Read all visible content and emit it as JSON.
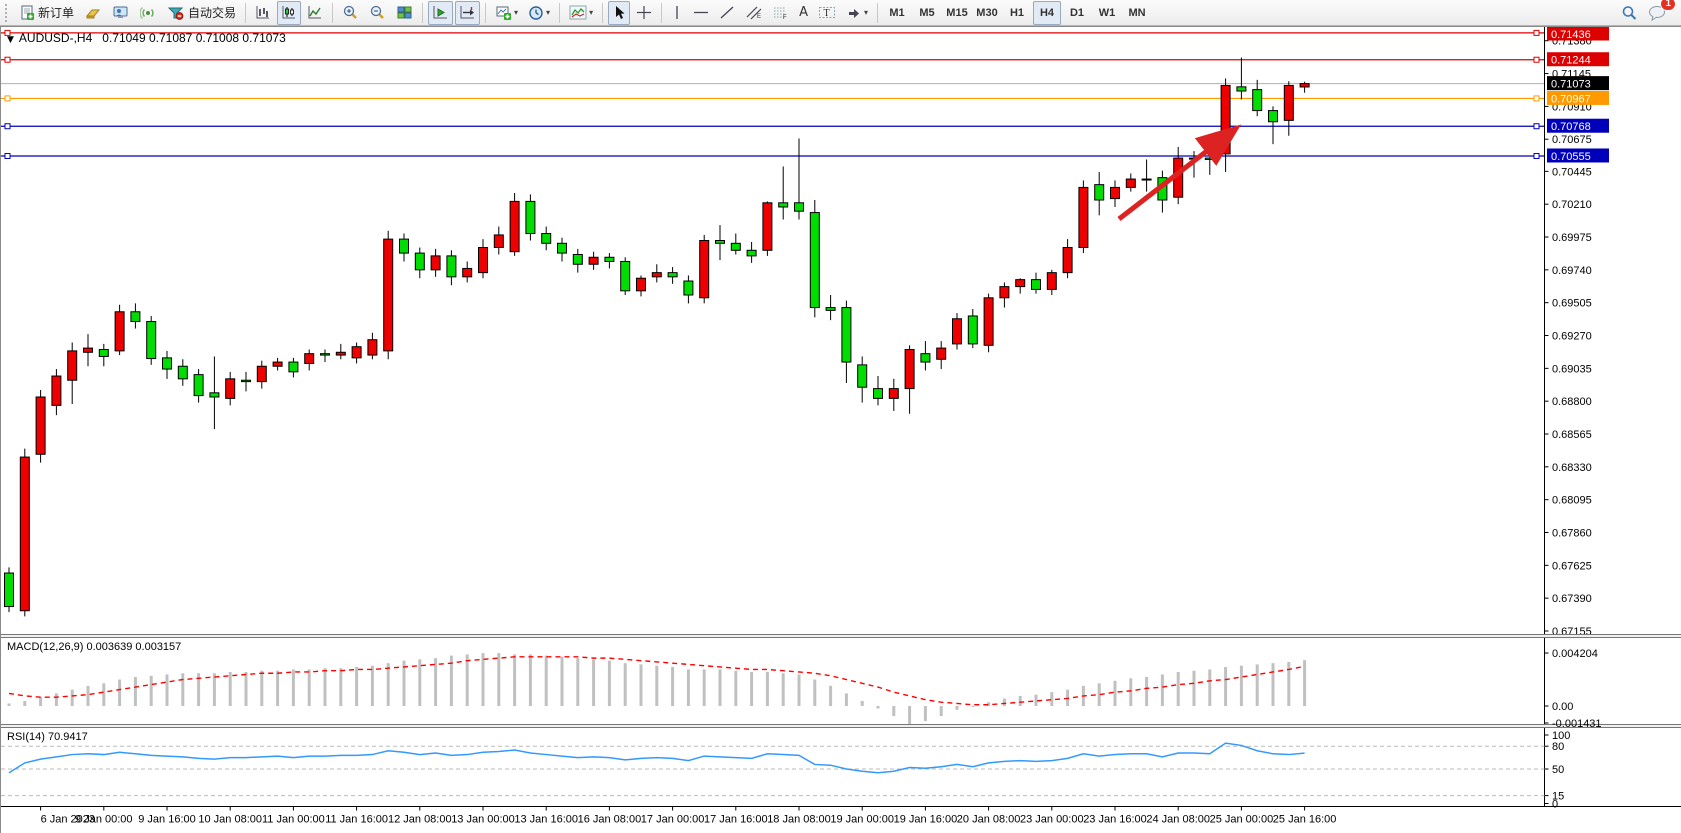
{
  "toolbar": {
    "new_order_label": "新订单",
    "autotrade_label": "自动交易",
    "timeframes": [
      "M1",
      "M5",
      "M15",
      "M30",
      "H1",
      "H4",
      "D1",
      "W1",
      "MN"
    ],
    "active_timeframe": "H4",
    "notification_count": "1",
    "icons": [
      "new-order-icon",
      "mql-gold-icon",
      "expert-advisor-icon",
      "signals-icon",
      "autotrade-icon",
      "bar-chart-icon",
      "candlestick-chart-icon",
      "line-chart-icon",
      "zoom-in-icon",
      "zoom-out-icon",
      "tile-windows-icon",
      "auto-scroll-icon",
      "chart-shift-icon",
      "new-chart-icon",
      "profiles-icon",
      "indicators-icon",
      "cursor-icon",
      "crosshair-icon",
      "vertical-line-icon",
      "horizontal-line-icon",
      "trendline-icon",
      "channel-icon",
      "fibonacci-icon",
      "text-icon",
      "text-label-icon",
      "shapes-icon",
      "search-icon",
      "chat-icon"
    ]
  },
  "chart": {
    "dropdown_glyph": "▼",
    "symbol_title": "AUDUSD-,H4",
    "ohlc_text": "0.71049 0.71087 0.71008 0.71073"
  },
  "chart_data": {
    "type": "candlestick",
    "symbol": "AUDUSD-",
    "timeframe": "H4",
    "title": "AUDUSD-,H4 0.71049 0.71087 0.71008 0.71073",
    "current_bar_ohlc": [
      0.71049,
      0.71087,
      0.71008,
      0.71073
    ],
    "up_color": "#ee0000",
    "down_color": "#00dd00",
    "bars": [
      [
        0.6757,
        0.6761,
        0.6729,
        0.6733
      ],
      [
        0.673,
        0.6846,
        0.6726,
        0.684
      ],
      [
        0.6842,
        0.6888,
        0.6836,
        0.6883
      ],
      [
        0.6877,
        0.6903,
        0.687,
        0.6898
      ],
      [
        0.6895,
        0.6922,
        0.6878,
        0.6916
      ],
      [
        0.6915,
        0.6928,
        0.6905,
        0.6918
      ],
      [
        0.6917,
        0.6921,
        0.6905,
        0.6912
      ],
      [
        0.6916,
        0.6949,
        0.6913,
        0.6944
      ],
      [
        0.6944,
        0.695,
        0.6932,
        0.6937
      ],
      [
        0.6937,
        0.6941,
        0.6906,
        0.69105
      ],
      [
        0.6911,
        0.6916,
        0.6896,
        0.6903
      ],
      [
        0.6905,
        0.691,
        0.6891,
        0.6896
      ],
      [
        0.6899,
        0.6903,
        0.6879,
        0.6884
      ],
      [
        0.6886,
        0.6912,
        0.686,
        0.6883
      ],
      [
        0.6882,
        0.6901,
        0.6877,
        0.6896
      ],
      [
        0.6895,
        0.6901,
        0.6887,
        0.6894
      ],
      [
        0.6894,
        0.6909,
        0.6889,
        0.6905
      ],
      [
        0.6905,
        0.6911,
        0.6902,
        0.6908
      ],
      [
        0.6908,
        0.6911,
        0.6897,
        0.6901
      ],
      [
        0.6907,
        0.6917,
        0.6902,
        0.6914
      ],
      [
        0.6914,
        0.6917,
        0.6908,
        0.6913
      ],
      [
        0.6913,
        0.6921,
        0.691,
        0.6915
      ],
      [
        0.6911,
        0.6922,
        0.6907,
        0.6919
      ],
      [
        0.6913,
        0.6929,
        0.691,
        0.6924
      ],
      [
        0.6916,
        0.7002,
        0.691,
        0.6996
      ],
      [
        0.6996,
        0.7,
        0.698,
        0.6986
      ],
      [
        0.6986,
        0.699,
        0.6968,
        0.6974
      ],
      [
        0.6974,
        0.6989,
        0.6969,
        0.6984
      ],
      [
        0.6984,
        0.6988,
        0.6963,
        0.6969
      ],
      [
        0.6969,
        0.698,
        0.6965,
        0.6975
      ],
      [
        0.6972,
        0.6996,
        0.6968,
        0.699
      ],
      [
        0.699,
        0.7005,
        0.6985,
        0.6999
      ],
      [
        0.6987,
        0.7029,
        0.6984,
        0.7023
      ],
      [
        0.7023,
        0.7028,
        0.6995,
        0.7
      ],
      [
        0.7,
        0.7005,
        0.6988,
        0.6993
      ],
      [
        0.6993,
        0.6997,
        0.698,
        0.6986
      ],
      [
        0.6985,
        0.6989,
        0.6972,
        0.6978
      ],
      [
        0.6978,
        0.6987,
        0.6974,
        0.6983
      ],
      [
        0.6983,
        0.6986,
        0.6975,
        0.698
      ],
      [
        0.698,
        0.6983,
        0.6956,
        0.6959
      ],
      [
        0.6959,
        0.697,
        0.6955,
        0.6968
      ],
      [
        0.6969,
        0.6978,
        0.6965,
        0.6972
      ],
      [
        0.6972,
        0.6976,
        0.6964,
        0.6969
      ],
      [
        0.6966,
        0.697,
        0.695,
        0.6956
      ],
      [
        0.6954,
        0.6999,
        0.695,
        0.6995
      ],
      [
        0.6995,
        0.7006,
        0.6981,
        0.6993
      ],
      [
        0.6993,
        0.7,
        0.6985,
        0.6988
      ],
      [
        0.6988,
        0.6994,
        0.6979,
        0.6984
      ],
      [
        0.6988,
        0.7023,
        0.6984,
        0.7022
      ],
      [
        0.7022,
        0.7048,
        0.701,
        0.7019
      ],
      [
        0.7022,
        0.7068,
        0.701,
        0.7016
      ],
      [
        0.7015,
        0.7024,
        0.694,
        0.6947
      ],
      [
        0.6947,
        0.6956,
        0.6938,
        0.6945
      ],
      [
        0.6947,
        0.6952,
        0.6893,
        0.6908
      ],
      [
        0.6906,
        0.6912,
        0.6879,
        0.689
      ],
      [
        0.6889,
        0.6898,
        0.6877,
        0.6882
      ],
      [
        0.6882,
        0.6896,
        0.6873,
        0.6889
      ],
      [
        0.6889,
        0.692,
        0.6871,
        0.6917
      ],
      [
        0.6914,
        0.6923,
        0.6902,
        0.6908
      ],
      [
        0.691,
        0.6923,
        0.6903,
        0.6918
      ],
      [
        0.6921,
        0.6943,
        0.6917,
        0.6939
      ],
      [
        0.6941,
        0.6946,
        0.6918,
        0.6921
      ],
      [
        0.692,
        0.6957,
        0.6915,
        0.6954
      ],
      [
        0.6954,
        0.6965,
        0.6947,
        0.6962
      ],
      [
        0.6962,
        0.6968,
        0.6957,
        0.6967
      ],
      [
        0.6967,
        0.6972,
        0.6957,
        0.696
      ],
      [
        0.696,
        0.6974,
        0.6956,
        0.6972
      ],
      [
        0.6972,
        0.6996,
        0.6968,
        0.699
      ],
      [
        0.699,
        0.7038,
        0.6986,
        0.7033
      ],
      [
        0.7035,
        0.7044,
        0.7013,
        0.7024
      ],
      [
        0.7025,
        0.7038,
        0.7019,
        0.7033
      ],
      [
        0.7033,
        0.7043,
        0.703,
        0.7039
      ],
      [
        0.7039,
        0.7053,
        0.703,
        0.7039
      ],
      [
        0.704,
        0.7045,
        0.7015,
        0.7024
      ],
      [
        0.7026,
        0.7062,
        0.7021,
        0.7054
      ],
      [
        0.7054,
        0.7059,
        0.704,
        0.7054
      ],
      [
        0.7054,
        0.706,
        0.7042,
        0.7053
      ],
      [
        0.7057,
        0.7111,
        0.7044,
        0.7106
      ],
      [
        0.7105,
        0.7126,
        0.7096,
        0.7102
      ],
      [
        0.7103,
        0.711,
        0.7084,
        0.7088
      ],
      [
        0.7088,
        0.7091,
        0.7064,
        0.708
      ],
      [
        0.7081,
        0.7109,
        0.707,
        0.7106
      ],
      [
        0.71049,
        0.71087,
        0.71008,
        0.71073
      ]
    ],
    "time_labels": [
      {
        "i": 2,
        "t": "6 Jan 2023"
      },
      {
        "i": 6,
        "t": "9 Jan 00:00"
      },
      {
        "i": 10,
        "t": "9 Jan 16:00"
      },
      {
        "i": 14,
        "t": "10 Jan 08:00"
      },
      {
        "i": 18,
        "t": "11 Jan 00:00"
      },
      {
        "i": 22,
        "t": "11 Jan 16:00"
      },
      {
        "i": 26,
        "t": "12 Jan 08:00"
      },
      {
        "i": 30,
        "t": "13 Jan 00:00"
      },
      {
        "i": 34,
        "t": "13 Jan 16:00"
      },
      {
        "i": 38,
        "t": "16 Jan 08:00"
      },
      {
        "i": 42,
        "t": "17 Jan 00:00"
      },
      {
        "i": 46,
        "t": "17 Jan 16:00"
      },
      {
        "i": 50,
        "t": "18 Jan 08:00"
      },
      {
        "i": 54,
        "t": "19 Jan 00:00"
      },
      {
        "i": 58,
        "t": "19 Jan 16:00"
      },
      {
        "i": 62,
        "t": "20 Jan 08:00"
      },
      {
        "i": 66,
        "t": "23 Jan 00:00"
      },
      {
        "i": 70,
        "t": "23 Jan 16:00"
      },
      {
        "i": 74,
        "t": "24 Jan 08:00"
      },
      {
        "i": 78,
        "t": "25 Jan 00:00"
      },
      {
        "i": 82,
        "t": "25 Jan 16:00"
      }
    ],
    "price_ticks": [
      "0.71380",
      "0.71145",
      "0.70910",
      "0.70675",
      "0.70445",
      "0.70210",
      "0.69975",
      "0.69740",
      "0.69505",
      "0.69270",
      "0.69035",
      "0.68800",
      "0.68565",
      "0.68330",
      "0.68095",
      "0.67860",
      "0.67625",
      "0.67390",
      "0.67155"
    ],
    "levels": [
      {
        "price": 0.71436,
        "label": "0.71436",
        "color": "#dd0000"
      },
      {
        "price": 0.71244,
        "label": "0.71244",
        "color": "#dd0000"
      },
      {
        "price": 0.70967,
        "label": "0.70967",
        "color": "#ff9900"
      },
      {
        "price": 0.70768,
        "label": "0.70768",
        "color": "#0000bb"
      },
      {
        "price": 0.70555,
        "label": "0.70555",
        "color": "#0000bb"
      }
    ],
    "current_price": {
      "price": 0.71073,
      "label": "0.71073",
      "badge_color": "#000000",
      "line_color": "#b0b0b0"
    },
    "macd": {
      "label": "MACD(12,26,9) 0.003639 0.003157",
      "axis_labels": [
        {
          "v": 0.004204,
          "t": "0.004204"
        },
        {
          "v": 0,
          "t": "0.00"
        },
        {
          "v": -0.001431,
          "t": "-0.001431"
        }
      ],
      "histogram_color": "#c0c0c0",
      "signal_color": "#ff0000",
      "histogram": [
        0.0002,
        0.0004,
        0.0007,
        0.001,
        0.0013,
        0.0016,
        0.0018,
        0.0021,
        0.0023,
        0.0024,
        0.0025,
        0.0026,
        0.0026,
        0.0026,
        0.0027,
        0.0027,
        0.0028,
        0.0028,
        0.0029,
        0.0029,
        0.003,
        0.003,
        0.0031,
        0.0032,
        0.0034,
        0.0036,
        0.0037,
        0.0038,
        0.004,
        0.0041,
        0.0042,
        0.0042,
        0.0041,
        0.0041,
        0.004,
        0.0039,
        0.0038,
        0.0037,
        0.0036,
        0.0034,
        0.0033,
        0.0032,
        0.0031,
        0.0029,
        0.0029,
        0.0029,
        0.0028,
        0.0027,
        0.0027,
        0.0026,
        0.0025,
        0.0021,
        0.0016,
        0.001,
        0.0004,
        -0.0002,
        -0.0008,
        -0.001431,
        -0.0012,
        -0.0008,
        -0.0003,
        0.0,
        0.0003,
        0.0006,
        0.0008,
        0.0009,
        0.0011,
        0.0013,
        0.0016,
        0.0018,
        0.002,
        0.0022,
        0.0023,
        0.0025,
        0.0027,
        0.0028,
        0.0029,
        0.0031,
        0.0032,
        0.0033,
        0.0034,
        0.0035,
        0.003639
      ],
      "signal": [
        0.001,
        0.0008,
        0.0007,
        0.0007,
        0.0008,
        0.0009,
        0.0011,
        0.0013,
        0.0015,
        0.0017,
        0.0019,
        0.0021,
        0.0022,
        0.0023,
        0.0024,
        0.0025,
        0.0026,
        0.0026,
        0.0027,
        0.0027,
        0.0028,
        0.0028,
        0.0029,
        0.0029,
        0.003,
        0.0031,
        0.0032,
        0.0033,
        0.0034,
        0.0036,
        0.0037,
        0.0038,
        0.0039,
        0.0039,
        0.0039,
        0.0039,
        0.0039,
        0.0038,
        0.0038,
        0.0037,
        0.0036,
        0.0035,
        0.0034,
        0.0033,
        0.0032,
        0.0031,
        0.003,
        0.0029,
        0.0029,
        0.0028,
        0.0027,
        0.0026,
        0.0024,
        0.0021,
        0.0018,
        0.0015,
        0.0011,
        0.0008,
        0.0005,
        0.0003,
        0.0002,
        0.0001,
        0.0001,
        0.0002,
        0.0003,
        0.0004,
        0.0005,
        0.0006,
        0.0008,
        0.0009,
        0.0011,
        0.0012,
        0.0014,
        0.0015,
        0.0017,
        0.0018,
        0.002,
        0.0021,
        0.0023,
        0.0025,
        0.0027,
        0.0029,
        0.003157
      ]
    },
    "rsi": {
      "label": "RSI(14) 70.9417",
      "line_color": "#3399ff",
      "axis_labels": [
        {
          "v": 100,
          "t": "100"
        },
        {
          "v": 80,
          "t": "80"
        },
        {
          "v": 50,
          "t": "50"
        },
        {
          "v": 15,
          "t": "15"
        },
        {
          "v": 0,
          "t": "0"
        }
      ],
      "dashed_levels": [
        80,
        50,
        15
      ],
      "values": [
        45,
        58,
        63,
        66,
        69,
        70,
        69,
        72,
        70,
        68,
        67,
        66,
        64,
        63,
        65,
        65,
        66,
        67,
        65,
        67,
        67,
        68,
        68,
        69,
        74,
        72,
        69,
        71,
        68,
        69,
        72,
        73,
        75,
        71,
        69,
        67,
        65,
        66,
        65,
        62,
        64,
        65,
        64,
        61,
        67,
        66,
        65,
        64,
        70,
        69,
        68,
        56,
        55,
        50,
        47,
        45,
        47,
        52,
        51,
        53,
        56,
        53,
        58,
        60,
        61,
        60,
        61,
        64,
        70,
        67,
        69,
        70,
        70,
        66,
        71,
        71,
        70,
        84,
        81,
        74,
        70,
        69,
        70.94
      ]
    },
    "arrow_annotation": {
      "from_xy": [
        1118,
        192
      ],
      "to_xy": [
        1233,
        103
      ],
      "color": "#dd2222"
    }
  }
}
